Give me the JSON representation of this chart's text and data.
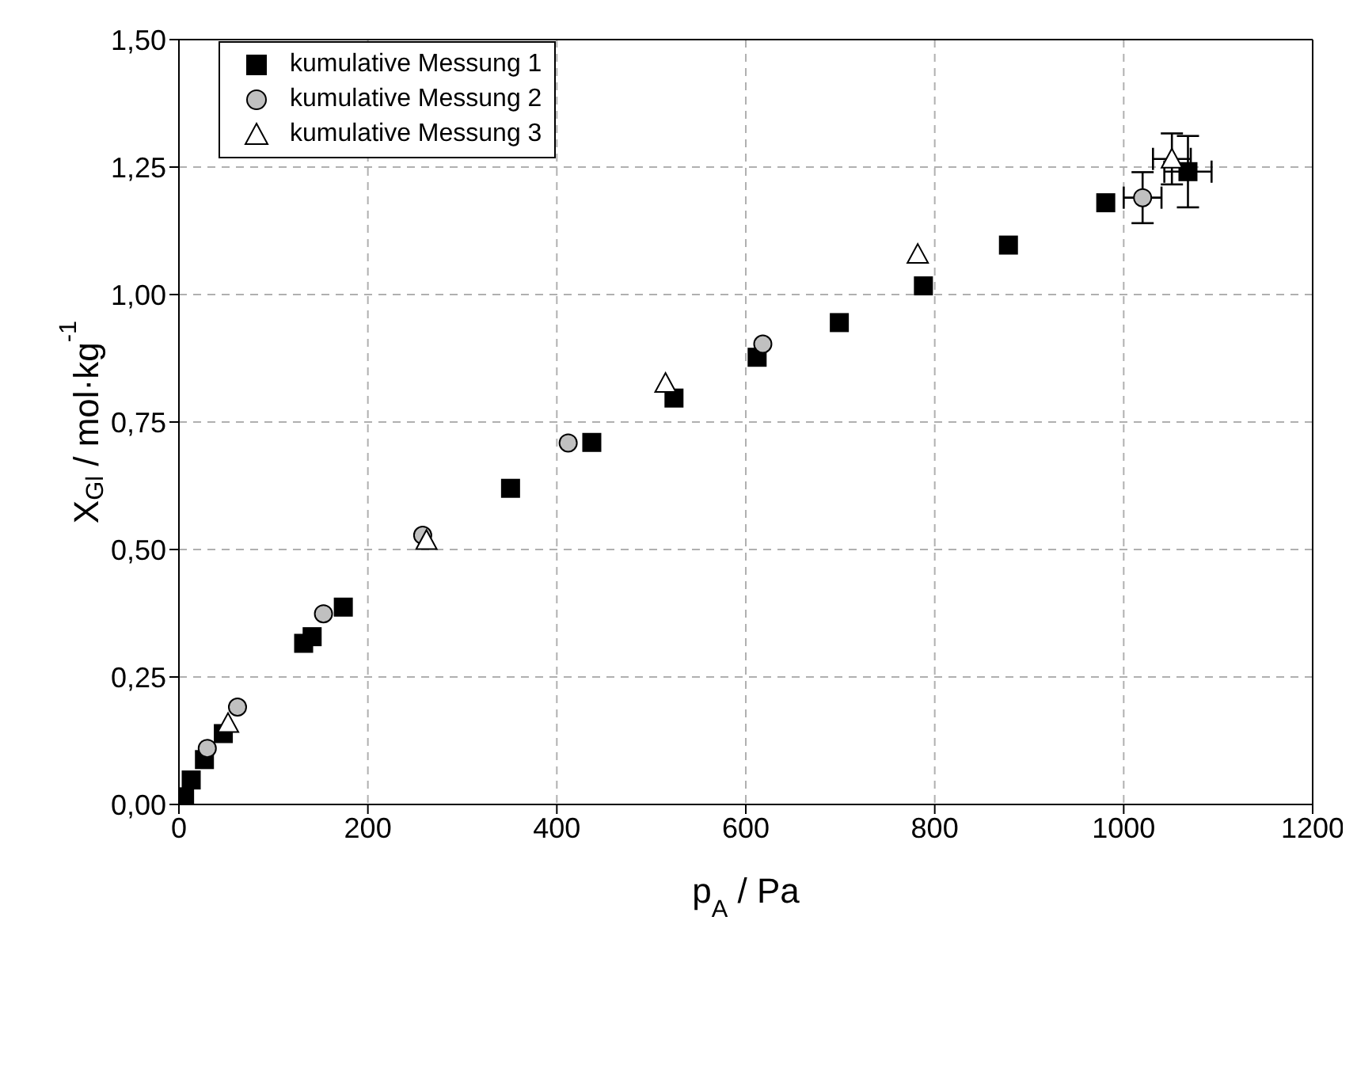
{
  "chart_data": {
    "type": "scatter",
    "xlabel": "p$_{A}$ / Pa",
    "ylabel": "X$_{Gl}$ / mol·kg$^{-1}$",
    "xlim": [
      0,
      1200
    ],
    "xticks": [
      0,
      200,
      400,
      600,
      800,
      1000,
      1200
    ],
    "ylim": [
      0,
      1.5
    ],
    "yticks": [
      {
        "value": 0,
        "label": "0,00"
      },
      {
        "value": 0.25,
        "label": "0,25"
      },
      {
        "value": 0.5,
        "label": "0,50"
      },
      {
        "value": 0.75,
        "label": "0,75"
      },
      {
        "value": 1,
        "label": "1,00"
      },
      {
        "value": 1.25,
        "label": "1,25"
      },
      {
        "value": 1.5,
        "label": "1,50"
      }
    ],
    "grid": true,
    "legend": "top left",
    "series": [
      {
        "name": "kumulative Messung 1",
        "color": "#000000",
        "marker": "square",
        "x": [
          6,
          13,
          27,
          47,
          132,
          141,
          174,
          351,
          437,
          524,
          612,
          699,
          788,
          878,
          981,
          1068
        ],
        "values": [
          0.015,
          0.048,
          0.088,
          0.139,
          0.316,
          0.329,
          0.387,
          0.62,
          0.71,
          0.797,
          0.877,
          0.945,
          1.017,
          1.097,
          1.18,
          1.241
        ],
        "errors": [
          null,
          null,
          null,
          null,
          null,
          null,
          null,
          null,
          null,
          null,
          null,
          null,
          null,
          null,
          null,
          0.07
        ],
        "xerrors": [
          null,
          null,
          null,
          null,
          null,
          null,
          null,
          null,
          null,
          null,
          null,
          null,
          null,
          null,
          null,
          25
        ]
      },
      {
        "name": "kumulative Messung 2",
        "color": "#c0c0c0",
        "marker": "circle",
        "x": [
          30,
          62,
          153,
          258,
          412,
          618,
          1020
        ],
        "values": [
          0.11,
          0.191,
          0.374,
          0.528,
          0.709,
          0.903,
          1.19
        ],
        "errors": [
          null,
          null,
          null,
          null,
          null,
          null,
          0.05
        ],
        "xerrors": [
          null,
          null,
          null,
          null,
          null,
          null,
          20
        ]
      },
      {
        "name": "kumulative Messung 3",
        "color": "#ffffff",
        "marker": "triangle",
        "x": [
          52,
          262,
          515,
          782,
          1051
        ],
        "values": [
          0.159,
          0.518,
          0.826,
          1.079,
          1.266
        ],
        "errors": [
          null,
          null,
          null,
          null,
          0.05
        ],
        "xerrors": [
          null,
          null,
          null,
          null,
          20
        ]
      }
    ]
  }
}
